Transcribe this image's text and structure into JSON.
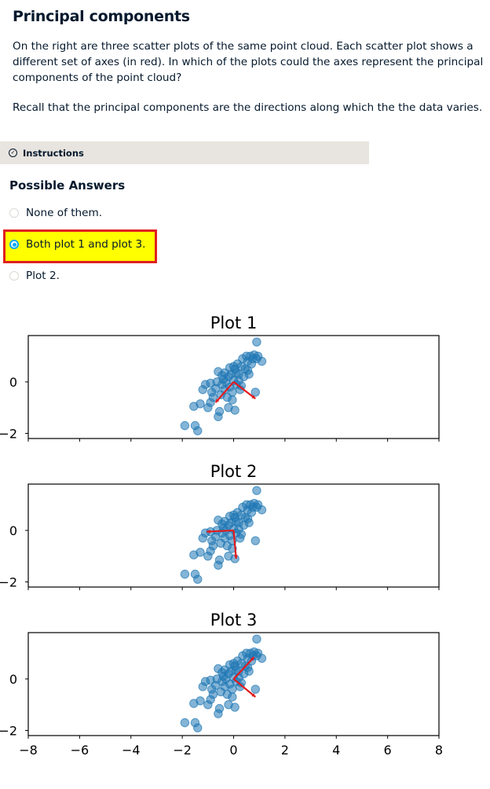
{
  "exercise": {
    "title": "Principal components",
    "paragraph1": "On the right are three scatter plots of the same point cloud. Each scatter plot shows a different set of axes (in red). In which of the plots could the axes represent the principal components of the point cloud?",
    "paragraph2": "Recall that the principal components are the directions along which the the data varies."
  },
  "instructions": {
    "label": "Instructions",
    "icon": "check-circle-icon"
  },
  "answers": {
    "heading": "Possible Answers",
    "options": [
      {
        "label": "None of them.",
        "selected": false
      },
      {
        "label": "Both plot 1 and plot 3.",
        "selected": true
      },
      {
        "label": "Plot 2.",
        "selected": false
      }
    ],
    "highlight_color": "#ffff00",
    "highlight_border": "#e02020"
  },
  "chart_data": [
    {
      "type": "scatter",
      "title": "Plot 1",
      "xlim": [
        -8,
        8
      ],
      "yticks": [
        "0",
        "−2"
      ],
      "point_color": "#1f77b4",
      "arrow_color": "#e41a1c",
      "arrows": [
        {
          "from": [
            0,
            0
          ],
          "to": [
            -0.7,
            -0.8
          ]
        },
        {
          "from": [
            0,
            0
          ],
          "to": [
            0.85,
            -0.65
          ]
        }
      ]
    },
    {
      "type": "scatter",
      "title": "Plot 2",
      "xlim": [
        -8,
        8
      ],
      "yticks": [
        "0",
        "−2"
      ],
      "point_color": "#1f77b4",
      "arrow_color": "#e41a1c",
      "arrows": [
        {
          "from": [
            0,
            0
          ],
          "to": [
            -1.05,
            -0.05
          ]
        },
        {
          "from": [
            0,
            0
          ],
          "to": [
            0.1,
            -1.1
          ]
        }
      ]
    },
    {
      "type": "scatter",
      "title": "Plot 3",
      "xlim": [
        -8,
        8
      ],
      "yticks": [
        "0",
        "−2"
      ],
      "xticks": [
        "−8",
        "−6",
        "−4",
        "−2",
        "0",
        "2",
        "4",
        "6",
        "8"
      ],
      "point_color": "#1f77b4",
      "arrow_color": "#e41a1c",
      "arrows": [
        {
          "from": [
            0,
            0
          ],
          "to": [
            0.8,
            0.85
          ]
        },
        {
          "from": [
            0,
            0
          ],
          "to": [
            0.85,
            -0.7
          ]
        }
      ]
    }
  ],
  "points": [
    [
      -1.9,
      -1.7
    ],
    [
      -1.5,
      -1.7
    ],
    [
      -1.4,
      -1.9
    ],
    [
      -1.55,
      -0.95
    ],
    [
      -1.3,
      -0.85
    ],
    [
      -1.0,
      -1.0
    ],
    [
      -0.9,
      -0.8
    ],
    [
      -1.2,
      -0.3
    ],
    [
      -1.1,
      -0.1
    ],
    [
      -0.85,
      -0.4
    ],
    [
      -0.8,
      -0.6
    ],
    [
      -0.7,
      -0.25
    ],
    [
      -0.6,
      0.4
    ],
    [
      -0.5,
      -0.5
    ],
    [
      -0.45,
      -0.1
    ],
    [
      -0.4,
      0.1
    ],
    [
      -0.35,
      -0.3
    ],
    [
      -0.3,
      0.0
    ],
    [
      -0.25,
      -0.6
    ],
    [
      -0.2,
      0.2
    ],
    [
      -0.15,
      -0.2
    ],
    [
      -0.1,
      0.3
    ],
    [
      -0.05,
      -0.4
    ],
    [
      0.0,
      0.05
    ],
    [
      0.05,
      0.5
    ],
    [
      0.1,
      -0.1
    ],
    [
      0.15,
      0.7
    ],
    [
      0.2,
      0.3
    ],
    [
      0.25,
      -0.3
    ],
    [
      0.3,
      0.6
    ],
    [
      0.35,
      0.9
    ],
    [
      0.4,
      0.2
    ],
    [
      0.45,
      0.5
    ],
    [
      0.5,
      1.0
    ],
    [
      0.55,
      0.8
    ],
    [
      0.6,
      0.3
    ],
    [
      0.65,
      1.0
    ],
    [
      0.7,
      0.7
    ],
    [
      0.75,
      0.9
    ],
    [
      0.8,
      1.05
    ],
    [
      0.85,
      -0.4
    ],
    [
      0.9,
      0.9
    ],
    [
      0.95,
      1.0
    ],
    [
      1.1,
      0.8
    ],
    [
      0.9,
      1.55
    ],
    [
      -0.55,
      -1.15
    ],
    [
      -0.6,
      -1.35
    ],
    [
      -0.2,
      -1.0
    ],
    [
      0.05,
      -1.1
    ],
    [
      -0.05,
      -0.7
    ],
    [
      -0.65,
      0.0
    ],
    [
      -0.35,
      0.35
    ],
    [
      0.0,
      0.6
    ],
    [
      0.2,
      0.05
    ],
    [
      -0.9,
      -0.05
    ],
    [
      0.3,
      -0.15
    ],
    [
      -0.15,
      0.55
    ],
    [
      0.55,
      0.45
    ],
    [
      -0.45,
      0.25
    ],
    [
      0.1,
      0.35
    ]
  ]
}
